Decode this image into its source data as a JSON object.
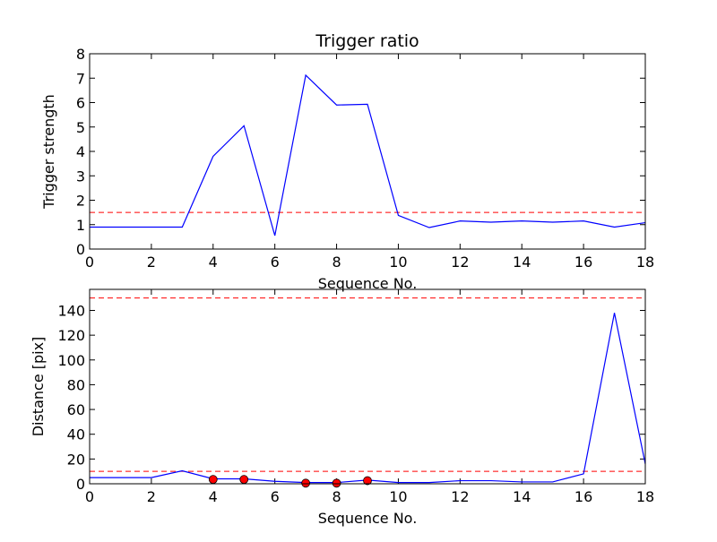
{
  "chart_data": [
    {
      "type": "line",
      "title": "Trigger ratio",
      "xlabel": "Sequence No.",
      "ylabel": "Trigger strength",
      "xlim": [
        0,
        18
      ],
      "ylim": [
        0,
        8
      ],
      "x_ticks": [
        0,
        2,
        4,
        6,
        8,
        10,
        12,
        14,
        16,
        18
      ],
      "y_ticks": [
        0,
        1,
        2,
        3,
        4,
        5,
        6,
        7,
        8
      ],
      "grid": false,
      "series": [
        {
          "style": "solid",
          "color": "#0000ff",
          "x": [
            0,
            1,
            2,
            3,
            4,
            5,
            6,
            7,
            8,
            9,
            10,
            11,
            12,
            13,
            14,
            15,
            16,
            17,
            18
          ],
          "y": [
            0.9,
            0.9,
            0.9,
            0.9,
            3.8,
            5.05,
            0.55,
            7.12,
            5.9,
            5.93,
            1.38,
            0.88,
            1.15,
            1.1,
            1.15,
            1.1,
            1.15,
            0.9,
            1.08
          ]
        }
      ],
      "reference_lines": [
        {
          "y": 1.5,
          "style": "dashed",
          "color": "#ff0000"
        }
      ]
    },
    {
      "type": "line",
      "title": "",
      "xlabel": "Sequence No.",
      "ylabel": "Distance [pix]",
      "xlim": [
        0,
        18
      ],
      "ylim": [
        0,
        157
      ],
      "x_ticks": [
        0,
        2,
        4,
        6,
        8,
        10,
        12,
        14,
        16,
        18
      ],
      "y_ticks": [
        0,
        20,
        40,
        60,
        80,
        100,
        120,
        140
      ],
      "grid": false,
      "series": [
        {
          "style": "solid",
          "color": "#0000ff",
          "x": [
            0,
            1,
            2,
            3,
            4,
            5,
            6,
            7,
            8,
            9,
            10,
            11,
            12,
            13,
            14,
            15,
            16,
            17,
            18
          ],
          "y": [
            5,
            5,
            5,
            10.5,
            4,
            4,
            2,
            1,
            1,
            3,
            1,
            1,
            2.5,
            2.5,
            1.5,
            1.5,
            8,
            138,
            16
          ]
        },
        {
          "style": "markers",
          "color": "#ff0000",
          "x": [
            4,
            5,
            7,
            8,
            9
          ],
          "y": [
            3.5,
            3.5,
            0.5,
            0.5,
            2.5
          ]
        }
      ],
      "reference_lines": [
        {
          "y": 150,
          "style": "dashed",
          "color": "#ff0000"
        },
        {
          "y": 10,
          "style": "dashed",
          "color": "#ff0000"
        }
      ]
    }
  ]
}
